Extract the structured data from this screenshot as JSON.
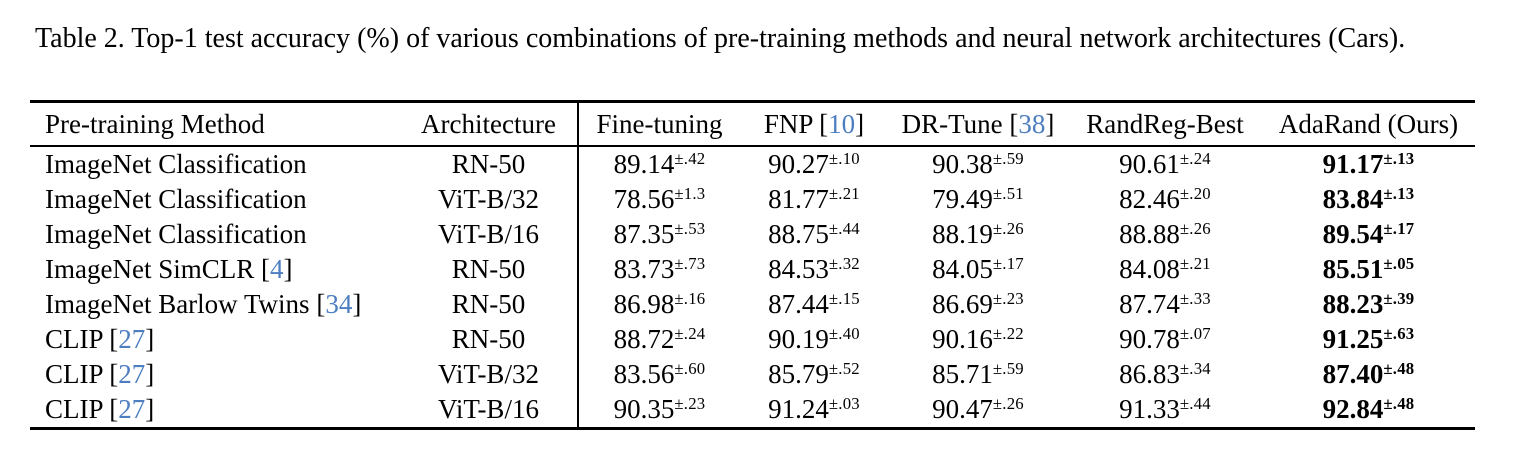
{
  "caption": "Table 2. Top-1 test accuracy (%) of various combinations of pre-training methods and neural network architectures (Cars).",
  "colors": {
    "citation": "#4d7ec0",
    "text": "#000000",
    "background": "#ffffff"
  },
  "table": {
    "columns": [
      {
        "label": "Pre-training Method",
        "cite": null
      },
      {
        "label": "Architecture",
        "cite": null
      },
      {
        "label": "Fine-tuning",
        "cite": null
      },
      {
        "label": "FNP",
        "cite": "10"
      },
      {
        "label": "DR-Tune",
        "cite": "38"
      },
      {
        "label": "RandReg-Best",
        "cite": null
      },
      {
        "label": "AdaRand (Ours)",
        "cite": null
      }
    ],
    "rows": [
      {
        "method": "ImageNet Classification",
        "cite": null,
        "architecture": "RN-50",
        "values": [
          {
            "v": "89.14",
            "pm": "±.42"
          },
          {
            "v": "90.27",
            "pm": "±.10"
          },
          {
            "v": "90.38",
            "pm": "±.59"
          },
          {
            "v": "90.61",
            "pm": "±.24"
          },
          {
            "v": "91.17",
            "pm": "±.13"
          }
        ]
      },
      {
        "method": "ImageNet Classification",
        "cite": null,
        "architecture": "ViT-B/32",
        "values": [
          {
            "v": "78.56",
            "pm": "±1.3"
          },
          {
            "v": "81.77",
            "pm": "±.21"
          },
          {
            "v": "79.49",
            "pm": "±.51"
          },
          {
            "v": "82.46",
            "pm": "±.20"
          },
          {
            "v": "83.84",
            "pm": "±.13"
          }
        ]
      },
      {
        "method": "ImageNet Classification",
        "cite": null,
        "architecture": "ViT-B/16",
        "values": [
          {
            "v": "87.35",
            "pm": "±.53"
          },
          {
            "v": "88.75",
            "pm": "±.44"
          },
          {
            "v": "88.19",
            "pm": "±.26"
          },
          {
            "v": "88.88",
            "pm": "±.26"
          },
          {
            "v": "89.54",
            "pm": "±.17"
          }
        ]
      },
      {
        "method": "ImageNet SimCLR",
        "cite": "4",
        "architecture": "RN-50",
        "values": [
          {
            "v": "83.73",
            "pm": "±.73"
          },
          {
            "v": "84.53",
            "pm": "±.32"
          },
          {
            "v": "84.05",
            "pm": "±.17"
          },
          {
            "v": "84.08",
            "pm": "±.21"
          },
          {
            "v": "85.51",
            "pm": "±.05"
          }
        ]
      },
      {
        "method": "ImageNet Barlow Twins",
        "cite": "34",
        "architecture": "RN-50",
        "values": [
          {
            "v": "86.98",
            "pm": "±.16"
          },
          {
            "v": "87.44",
            "pm": "±.15"
          },
          {
            "v": "86.69",
            "pm": "±.23"
          },
          {
            "v": "87.74",
            "pm": "±.33"
          },
          {
            "v": "88.23",
            "pm": "±.39"
          }
        ]
      },
      {
        "method": "CLIP",
        "cite": "27",
        "architecture": "RN-50",
        "values": [
          {
            "v": "88.72",
            "pm": "±.24"
          },
          {
            "v": "90.19",
            "pm": "±.40"
          },
          {
            "v": "90.16",
            "pm": "±.22"
          },
          {
            "v": "90.78",
            "pm": "±.07"
          },
          {
            "v": "91.25",
            "pm": "±.63"
          }
        ]
      },
      {
        "method": "CLIP",
        "cite": "27",
        "architecture": "ViT-B/32",
        "values": [
          {
            "v": "83.56",
            "pm": "±.60"
          },
          {
            "v": "85.79",
            "pm": "±.52"
          },
          {
            "v": "85.71",
            "pm": "±.59"
          },
          {
            "v": "86.83",
            "pm": "±.34"
          },
          {
            "v": "87.40",
            "pm": "±.48"
          }
        ]
      },
      {
        "method": "CLIP",
        "cite": "27",
        "architecture": "ViT-B/16",
        "values": [
          {
            "v": "90.35",
            "pm": "±.23"
          },
          {
            "v": "91.24",
            "pm": "±.03"
          },
          {
            "v": "90.47",
            "pm": "±.26"
          },
          {
            "v": "91.33",
            "pm": "±.44"
          },
          {
            "v": "92.84",
            "pm": "±.48"
          }
        ]
      }
    ]
  }
}
